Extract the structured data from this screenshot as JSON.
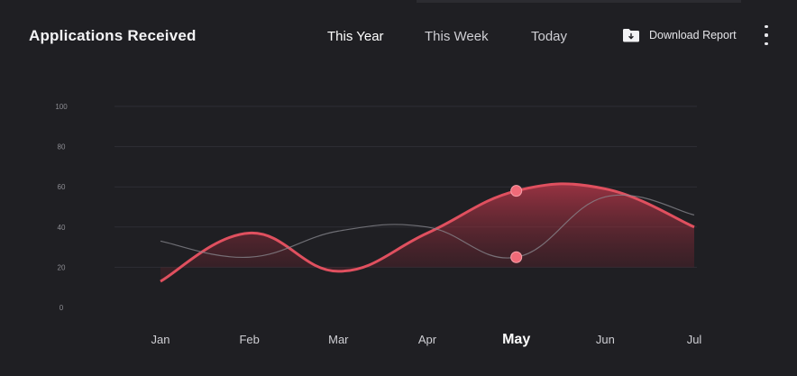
{
  "header": {
    "title": "Applications Received",
    "tabs": [
      {
        "label": "This Year",
        "active": true
      },
      {
        "label": "This Week",
        "active": false
      },
      {
        "label": "Today",
        "active": false
      }
    ],
    "download_label": "Download Report",
    "download_icon": "folder-download-icon",
    "more_icon": "more-vertical-icon"
  },
  "colors": {
    "background": "#1f1f23",
    "primary_series": "#e0505f",
    "secondary_series": "#8a8a90",
    "grid": "#2e2e34"
  },
  "chart_data": {
    "type": "area",
    "categories": [
      "Jan",
      "Feb",
      "Mar",
      "Apr",
      "May",
      "Jun",
      "Jul"
    ],
    "selected_category": "May",
    "y_ticks": [
      0,
      20,
      40,
      60,
      80,
      100
    ],
    "ylim": [
      0,
      100
    ],
    "grid": true,
    "series": [
      {
        "key": "primary",
        "values": [
          13,
          37,
          18,
          37,
          58,
          59,
          40
        ]
      },
      {
        "key": "secondary",
        "values": [
          33,
          25,
          38,
          40,
          25,
          55,
          46
        ]
      }
    ]
  }
}
